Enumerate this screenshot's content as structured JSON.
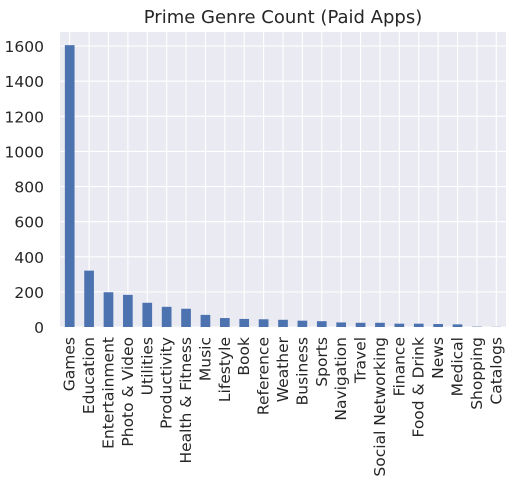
{
  "chart_data": {
    "type": "bar",
    "title": "Prime Genre Count (Paid Apps)",
    "xlabel": "",
    "ylabel": "",
    "categories": [
      "Games",
      "Education",
      "Entertainment",
      "Photo & Video",
      "Utilities",
      "Productivity",
      "Health & Fitness",
      "Music",
      "Lifestyle",
      "Book",
      "Reference",
      "Weather",
      "Business",
      "Sports",
      "Navigation",
      "Travel",
      "Social Networking",
      "Finance",
      "Food & Drink",
      "News",
      "Medical",
      "Shopping",
      "Catalogs"
    ],
    "values": [
      1605,
      321,
      198,
      183,
      138,
      115,
      104,
      69,
      51,
      46,
      44,
      41,
      36,
      33,
      26,
      24,
      24,
      19,
      19,
      17,
      15,
      2,
      1
    ],
    "ylim": [
      0,
      1680
    ],
    "yticks": [
      0,
      200,
      400,
      600,
      800,
      1000,
      1200,
      1400,
      1600
    ],
    "grid": true,
    "bar_color": "#4c72b0",
    "background_color": "#eaeaf2",
    "grid_color": "#ffffff"
  }
}
